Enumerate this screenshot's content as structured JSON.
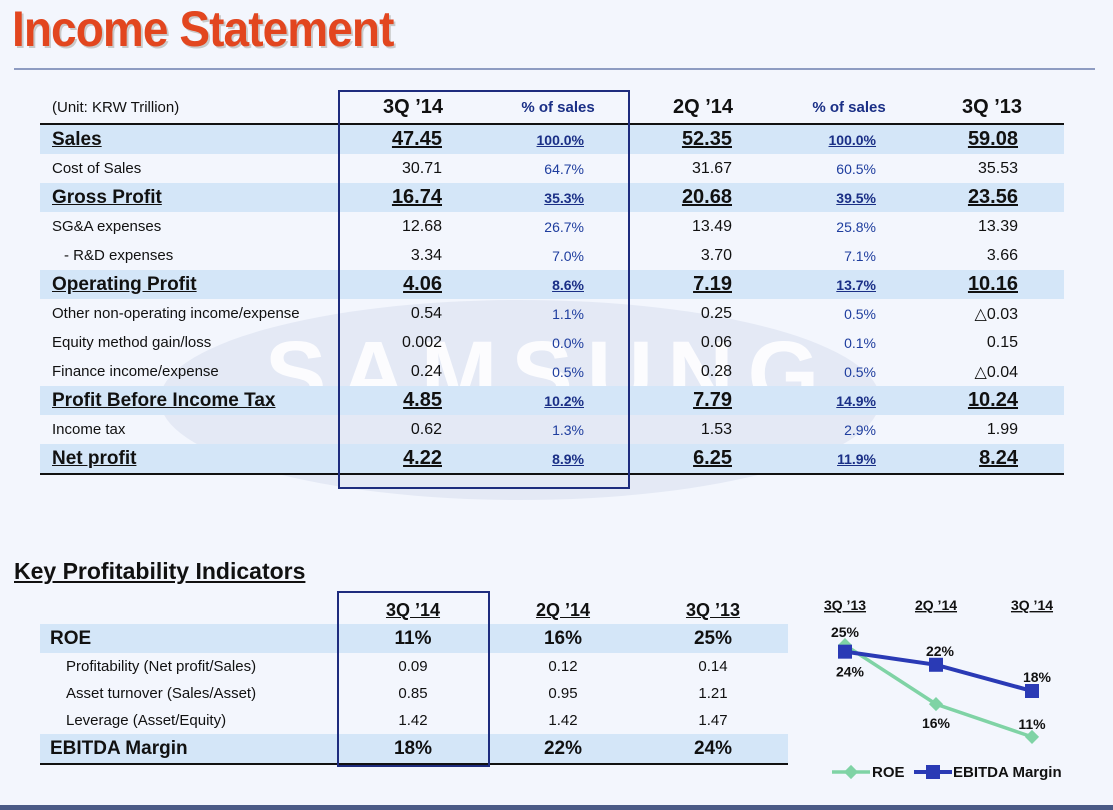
{
  "title": "Income Statement",
  "income_statement": {
    "unit": "(Unit: KRW Trillion)",
    "columns": [
      "3Q ’14",
      "% of sales",
      "2Q ’14",
      "% of sales",
      "3Q ’13"
    ],
    "rows": [
      {
        "label": "Sales",
        "bold": true,
        "v1": "47.45",
        "p1": "100.0%",
        "v2": "52.35",
        "p2": "100.0%",
        "v3": "59.08"
      },
      {
        "label": "Cost of Sales",
        "bold": false,
        "v1": "30.71",
        "p1": "64.7%",
        "v2": "31.67",
        "p2": "60.5%",
        "v3": "35.53"
      },
      {
        "label": "Gross Profit",
        "bold": true,
        "v1": "16.74",
        "p1": "35.3%",
        "v2": "20.68",
        "p2": "39.5%",
        "v3": "23.56"
      },
      {
        "label": "SG&A expenses",
        "bold": false,
        "v1": "12.68",
        "p1": "26.7%",
        "v2": "13.49",
        "p2": "25.8%",
        "v3": "13.39"
      },
      {
        "label": "- R&D expenses",
        "bold": false,
        "indent": true,
        "v1": "3.34",
        "p1": "7.0%",
        "v2": "3.70",
        "p2": "7.1%",
        "v3": "3.66"
      },
      {
        "label": "Operating Profit",
        "bold": true,
        "v1": "4.06",
        "p1": "8.6%",
        "v2": "7.19",
        "p2": "13.7%",
        "v3": "10.16"
      },
      {
        "label": "Other non-operating income/expense",
        "bold": false,
        "v1": "0.54",
        "p1": "1.1%",
        "v2": "0.25",
        "p2": "0.5%",
        "v3": "△0.03"
      },
      {
        "label": "Equity method gain/loss",
        "bold": false,
        "v1": "0.002",
        "p1": "0.0%",
        "v2": "0.06",
        "p2": "0.1%",
        "v3": "0.15"
      },
      {
        "label": "Finance income/expense",
        "bold": false,
        "v1": "0.24",
        "p1": "0.5%",
        "v2": "0.28",
        "p2": "0.5%",
        "v3": "△0.04"
      },
      {
        "label": "Profit Before Income Tax",
        "bold": true,
        "v1": "4.85",
        "p1": "10.2%",
        "v2": "7.79",
        "p2": "14.9%",
        "v3": "10.24"
      },
      {
        "label": "Income tax",
        "bold": false,
        "v1": "0.62",
        "p1": "1.3%",
        "v2": "1.53",
        "p2": "2.9%",
        "v3": "1.99"
      },
      {
        "label": "Net profit",
        "bold": true,
        "v1": "4.22",
        "p1": "8.9%",
        "v2": "6.25",
        "p2": "11.9%",
        "v3": "8.24"
      }
    ]
  },
  "kpi": {
    "title": "Key Profitability Indicators",
    "columns": [
      "3Q ’14",
      "2Q ’14",
      "3Q ’13"
    ],
    "rows": [
      {
        "label": "ROE",
        "main": true,
        "values": [
          "11%",
          "16%",
          "25%"
        ]
      },
      {
        "label": "Profitability (Net profit/Sales)",
        "main": false,
        "values": [
          "0.09",
          "0.12",
          "0.14"
        ]
      },
      {
        "label": "Asset turnover (Sales/Asset)",
        "main": false,
        "values": [
          "0.85",
          "0.95",
          "1.21"
        ]
      },
      {
        "label": "Leverage (Asset/Equity)",
        "main": false,
        "values": [
          "1.42",
          "1.42",
          "1.47"
        ]
      },
      {
        "label": "EBITDA Margin",
        "main": true,
        "values": [
          "18%",
          "22%",
          "24%"
        ]
      }
    ]
  },
  "watermark": "SAMSUNG",
  "chart_data": {
    "type": "line",
    "categories": [
      "3Q ’13",
      "2Q ’14",
      "3Q ’14"
    ],
    "series": [
      {
        "name": "ROE",
        "values": [
          25,
          16,
          11
        ],
        "labels": [
          "25%",
          "16%",
          "11%"
        ],
        "color": "#7fd3a5"
      },
      {
        "name": "EBITDA Margin",
        "values": [
          24,
          22,
          18
        ],
        "labels": [
          "24%",
          "22%",
          "18%"
        ],
        "color": "#2a3ab5"
      }
    ],
    "ylim": [
      9,
      27
    ],
    "legend": "bottom"
  }
}
